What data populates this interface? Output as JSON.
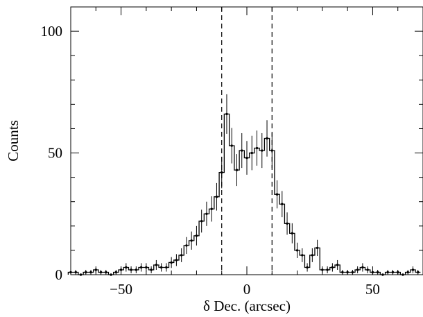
{
  "chart_data": {
    "type": "histogram",
    "xlabel": "δ Dec. (arcsec)",
    "ylabel": "Counts",
    "xlim": [
      -70,
      70
    ],
    "ylim": [
      0,
      110
    ],
    "x_ticks": [
      -50,
      0,
      50
    ],
    "y_ticks": [
      0,
      50,
      100
    ],
    "x_tick_labels": [
      "−50",
      "0",
      "50"
    ],
    "y_tick_labels": [
      "0",
      "50",
      "100"
    ],
    "bin_width": 2,
    "vlines": [
      -10,
      10
    ],
    "grid": false,
    "legend": "none",
    "series": [
      {
        "x": [
          -70,
          -68,
          -66,
          -64,
          -62,
          -60,
          -58,
          -56,
          -54,
          -52,
          -50,
          -48,
          -46,
          -44,
          -42,
          -40,
          -38,
          -36,
          -34,
          -32,
          -30,
          -28,
          -26,
          -24,
          -22,
          -20,
          -18,
          -16,
          -14,
          -12,
          -10,
          -8,
          -6,
          -4,
          -2,
          0,
          2,
          4,
          6,
          8,
          10,
          12,
          14,
          16,
          18,
          20,
          22,
          24,
          26,
          28,
          30,
          32,
          34,
          36,
          38,
          40,
          42,
          44,
          46,
          48,
          50,
          52,
          54,
          56,
          58,
          60,
          62,
          64,
          66,
          68
        ],
        "values": [
          1,
          1,
          0,
          1,
          1,
          2,
          1,
          1,
          0,
          1,
          2,
          3,
          2,
          2,
          3,
          3,
          2,
          4,
          3,
          3,
          5,
          6,
          8,
          12,
          14,
          16,
          22,
          25,
          27,
          32,
          42,
          66,
          53,
          43,
          51,
          48,
          50,
          52,
          51,
          56,
          51,
          33,
          29,
          21,
          17,
          10,
          8,
          3,
          8,
          11,
          2,
          2,
          3,
          4,
          1,
          1,
          1,
          2,
          3,
          2,
          1,
          1,
          0,
          1,
          1,
          1,
          0,
          1,
          2,
          1
        ]
      }
    ]
  }
}
